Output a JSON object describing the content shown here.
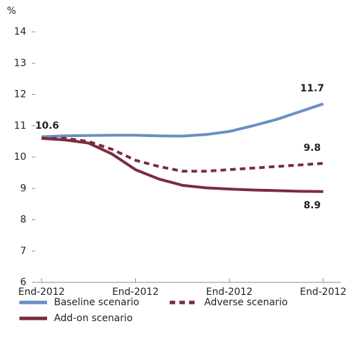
{
  "chart_data": {
    "type": "line",
    "y_label": "%",
    "categories": [
      "End-2012",
      null,
      null,
      null,
      "End-2012",
      null,
      null,
      null,
      "End-2012",
      null,
      null,
      null,
      "End-2012"
    ],
    "ylim": [
      6,
      14
    ],
    "yticks": [
      6,
      7,
      8,
      9,
      10,
      11,
      12,
      13,
      14
    ],
    "series": [
      {
        "name": "Baseline scenario",
        "color": "#6a8fc2",
        "dash": false,
        "labels_at": [
          12
        ],
        "values": [
          10.65,
          10.68,
          10.69,
          10.7,
          10.7,
          10.68,
          10.67,
          10.72,
          10.82,
          11.0,
          11.2,
          11.45,
          11.7
        ]
      },
      {
        "name": "Adverse scenario",
        "color": "#7b2b3e",
        "dash": true,
        "labels_at": [
          12
        ],
        "values": [
          10.6,
          10.6,
          10.5,
          10.25,
          9.9,
          9.7,
          9.55,
          9.55,
          9.6,
          9.65,
          9.7,
          9.75,
          9.8
        ]
      },
      {
        "name": "Add-on scenario",
        "color": "#7b2b3e",
        "dash": false,
        "labels_at": [
          0,
          12
        ],
        "values": [
          10.6,
          10.55,
          10.45,
          10.1,
          9.6,
          9.3,
          9.1,
          9.02,
          8.98,
          8.95,
          8.93,
          8.91,
          8.9
        ]
      }
    ]
  }
}
